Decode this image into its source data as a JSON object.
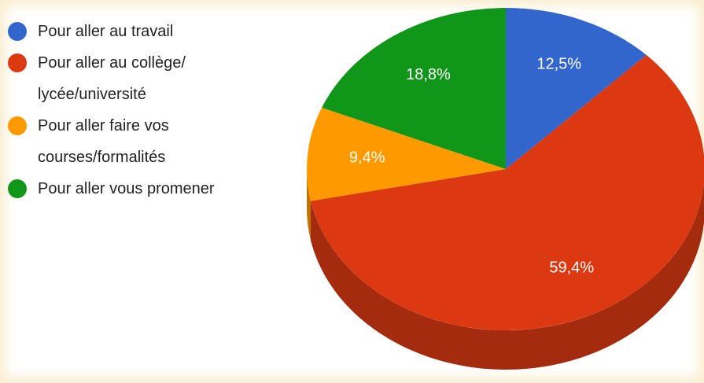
{
  "chart_data": {
    "type": "pie3d",
    "categories": [
      "Pour aller au travail",
      "Pour aller au collège/ lycée/université",
      "Pour aller faire vos courses/formalités",
      "Pour aller vous promener"
    ],
    "values": [
      12.5,
      59.4,
      9.4,
      18.8
    ],
    "value_labels": [
      "12,5%",
      "59,4%",
      "9,4%",
      "18,8%"
    ],
    "colors": [
      "#3366cc",
      "#dc3912",
      "#ff9900",
      "#109618"
    ],
    "side_colors": [
      "#264d99",
      "#a52b0e",
      "#bf7300",
      "#0c7112"
    ],
    "legend": "left"
  }
}
